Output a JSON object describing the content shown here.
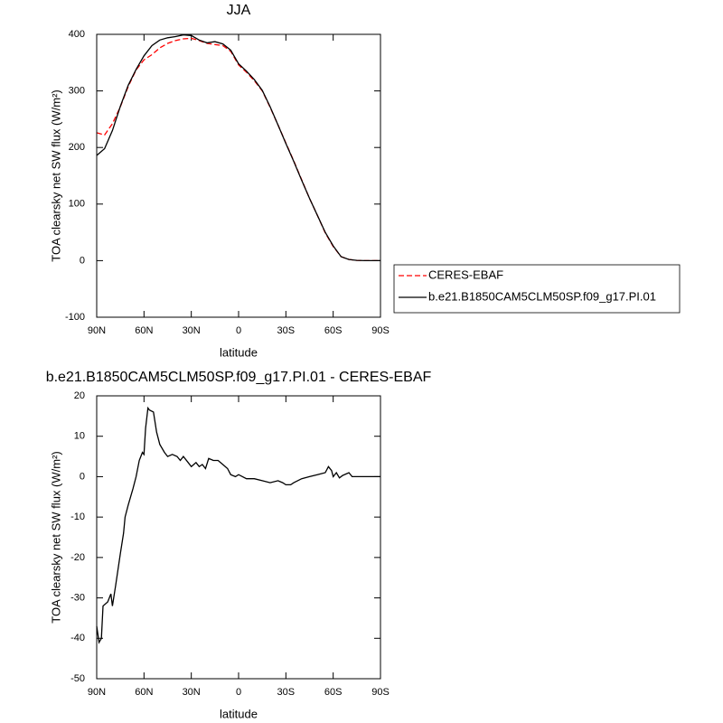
{
  "chart_data": [
    {
      "type": "line",
      "title": "JJA",
      "xlabel": "latitude",
      "ylabel": "TOA clearsky net SW flux (W/m²)",
      "x": [
        90,
        85,
        80,
        75,
        70,
        65,
        60,
        55,
        50,
        45,
        40,
        35,
        30,
        25,
        20,
        15,
        10,
        5,
        0,
        -5,
        -10,
        -15,
        -20,
        -25,
        -30,
        -35,
        -40,
        -45,
        -50,
        -55,
        -60,
        -65,
        -70,
        -75,
        -80,
        -85,
        -90
      ],
      "series": [
        {
          "name": "CERES-EBAF",
          "color": "#ff0000",
          "dash": true,
          "values": [
            226,
            222,
            242,
            272,
            308,
            337,
            355,
            364,
            376,
            384,
            389,
            392,
            393,
            389,
            384,
            382,
            380,
            370,
            346,
            333,
            318,
            300,
            271,
            240,
            208,
            176,
            143,
            110,
            80,
            49,
            25,
            7,
            2,
            0.5,
            0,
            0,
            0
          ]
        },
        {
          "name": "b.e21.B1850CAM5CLM50SP.f09_g17.PI.01",
          "color": "#000000",
          "dash": false,
          "values": [
            186,
            198,
            230,
            273,
            310,
            338,
            362,
            380,
            390,
            394,
            396,
            399,
            398,
            390,
            385,
            387,
            383,
            372,
            348,
            335,
            320,
            301,
            272,
            240,
            207,
            175,
            142,
            110,
            80,
            50,
            26,
            7,
            2,
            0.5,
            0,
            0,
            0
          ]
        }
      ],
      "xlim": [
        90,
        -90
      ],
      "xticks": [
        {
          "value": 90,
          "label": "90N"
        },
        {
          "value": 60,
          "label": "60N"
        },
        {
          "value": 30,
          "label": "30N"
        },
        0,
        {
          "value": -30,
          "label": "30S"
        },
        {
          "value": -60,
          "label": "60S"
        },
        {
          "value": -90,
          "label": "90S"
        }
      ],
      "ylim": [
        -100,
        400
      ],
      "yticks": [
        -100,
        0,
        100,
        200,
        300,
        400
      ],
      "legend": "outside-right"
    },
    {
      "type": "line",
      "title": "b.e21.B1850CAM5CLM50SP.f09_g17.PI.01 - CERES-EBAF",
      "xlabel": "latitude",
      "ylabel": "TOA clearsky net SW flux (W/m²)",
      "x": [
        90,
        88.5,
        87,
        86,
        83,
        81,
        80,
        78,
        75,
        73,
        72,
        70,
        67,
        65,
        63,
        61,
        60,
        59,
        57.5,
        56.5,
        54,
        52,
        50,
        47,
        45,
        42,
        39,
        37,
        35,
        32,
        30,
        27,
        25,
        23,
        21,
        19,
        16,
        13,
        10,
        7,
        5,
        2,
        0,
        -5,
        -10,
        -15,
        -20,
        -25,
        -28,
        -30,
        -33,
        -35,
        -40,
        -45,
        -50,
        -55,
        -57,
        -59,
        -60,
        -62,
        -64,
        -66,
        -70,
        -72,
        -75,
        -90
      ],
      "series": [
        {
          "name": "b.e21.B1850CAM5CLM50SP.f09_g17.PI.01 - CERES-EBAF",
          "color": "#000000",
          "dash": false,
          "values": [
            -37,
            -41,
            -40,
            -32,
            -31,
            -29,
            -32,
            -27,
            -19,
            -14,
            -10,
            -7,
            -3,
            0,
            4,
            6,
            5.5,
            12,
            17,
            16.5,
            16,
            11,
            8,
            6,
            5,
            5.5,
            5,
            4,
            5,
            3.5,
            2.5,
            3.5,
            2.5,
            3,
            2,
            4.5,
            4,
            4,
            3,
            2,
            0.5,
            0,
            0.5,
            -0.5,
            -0.5,
            -1,
            -1.5,
            -1,
            -1.5,
            -2,
            -2,
            -1.5,
            -0.5,
            0,
            0.5,
            1,
            2.5,
            1.5,
            0,
            1,
            -0.3,
            0.3,
            1,
            0,
            0,
            0
          ]
        }
      ],
      "xlim": [
        90,
        -90
      ],
      "xticks": [
        {
          "value": 90,
          "label": "90N"
        },
        {
          "value": 60,
          "label": "60N"
        },
        {
          "value": 30,
          "label": "30N"
        },
        0,
        {
          "value": -30,
          "label": "30S"
        },
        {
          "value": -60,
          "label": "60S"
        },
        {
          "value": -90,
          "label": "90S"
        }
      ],
      "ylim": [
        -50,
        20
      ],
      "yticks": [
        -50,
        -40,
        -30,
        -20,
        -10,
        0,
        10,
        20
      ]
    }
  ]
}
